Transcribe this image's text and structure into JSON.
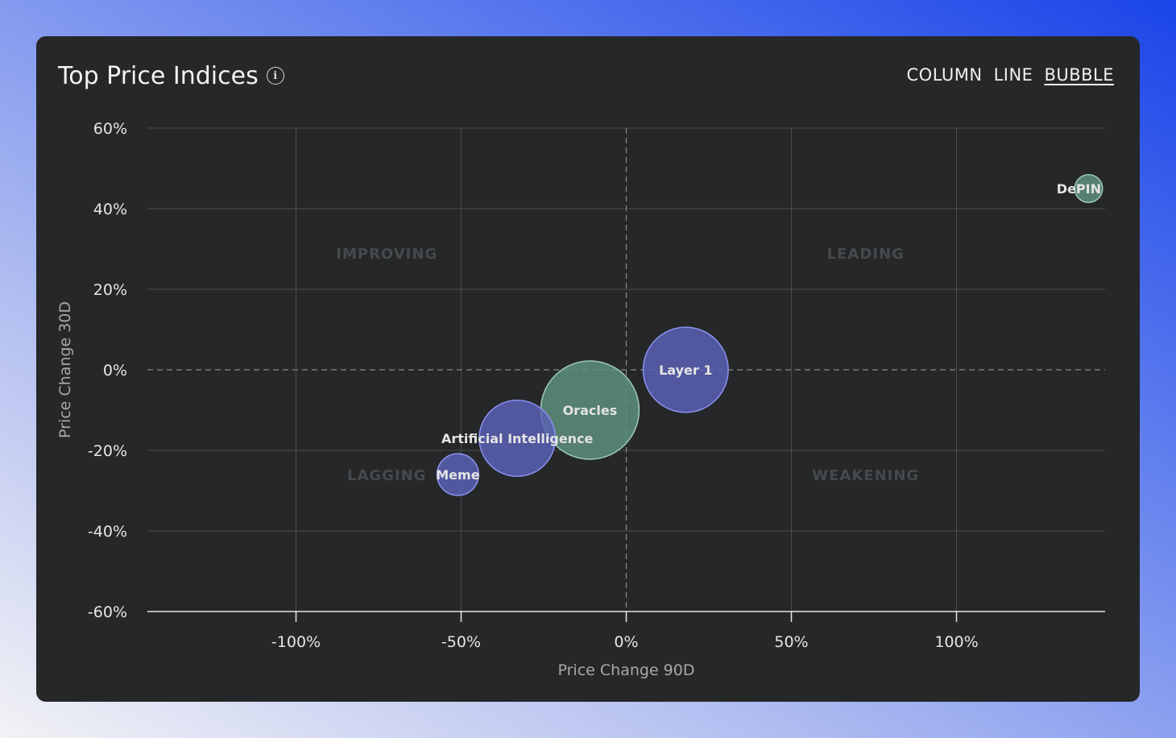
{
  "header": {
    "title": "Top Price Indices",
    "info_icon": "info-icon",
    "toggles": [
      {
        "label": "COLUMN",
        "active": false
      },
      {
        "label": "LINE",
        "active": false
      },
      {
        "label": "BUBBLE",
        "active": true
      }
    ]
  },
  "chart_data": {
    "type": "scatter",
    "subtype": "bubble",
    "xlabel": "Price Change 90D",
    "ylabel": "Price Change 30D",
    "xlim": [
      -145,
      145
    ],
    "ylim": [
      -60,
      60
    ],
    "xticks": [
      -100,
      -50,
      0,
      50,
      100
    ],
    "yticks": [
      60,
      40,
      20,
      0,
      -20,
      -40,
      -60
    ],
    "tick_suffix": "%",
    "grid": true,
    "zero_lines": "dashed",
    "quadrants": [
      {
        "label": "IMPROVING",
        "x": -72.5,
        "y": 29
      },
      {
        "label": "LEADING",
        "x": 72.5,
        "y": 29
      },
      {
        "label": "LAGGING",
        "x": -72.5,
        "y": -26
      },
      {
        "label": "WEAKENING",
        "x": 72.5,
        "y": -26
      }
    ],
    "points": [
      {
        "name": "DePIN",
        "x": 140,
        "y": 45,
        "size": 0.08,
        "color": "#5e8f7e"
      },
      {
        "name": "Layer 1",
        "x": 18,
        "y": 0,
        "size": 0.75,
        "color": "#5a61b4"
      },
      {
        "name": "Oracles",
        "x": -11,
        "y": -10,
        "size": 1.0,
        "color": "#5e8f7e"
      },
      {
        "name": "Artificial Intelligence",
        "x": -33,
        "y": -17,
        "size": 0.6,
        "color": "#5a61b4"
      },
      {
        "name": "Meme",
        "x": -51,
        "y": -26,
        "size": 0.18,
        "color": "#5a61b4"
      }
    ]
  }
}
